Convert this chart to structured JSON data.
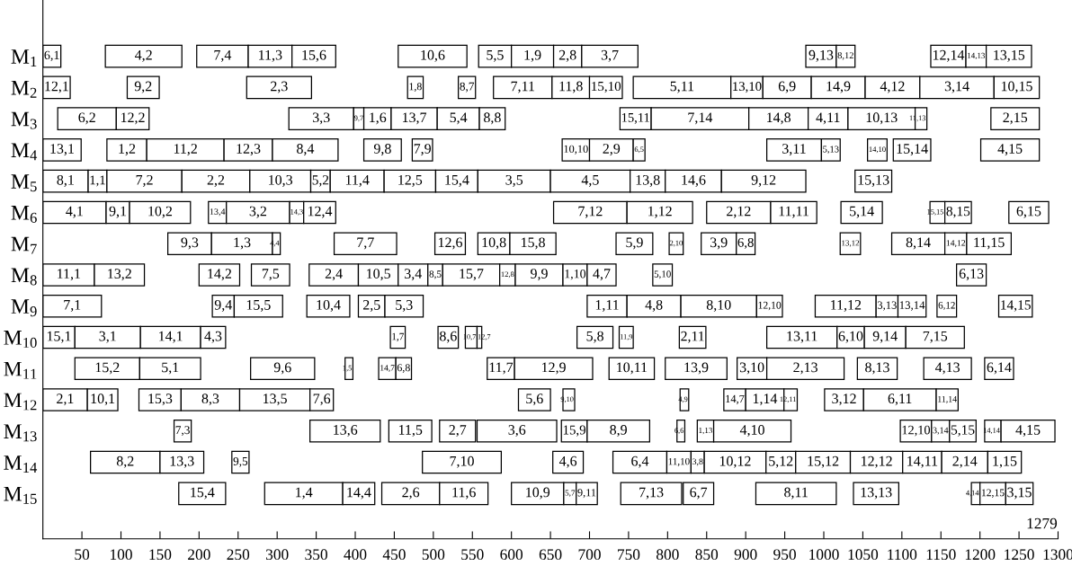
{
  "chart_data": {
    "type": "bar",
    "orientation": "horizontal",
    "categories": [
      "M$_{1}$",
      "M$_{2}$",
      "M$_{3}$",
      "M$_{4}$",
      "M$_{5}$",
      "M$_{6}$",
      "M$_{7}$",
      "M$_{8}$",
      "M$_{9}$",
      "M$_{10}$",
      "M$_{11}$",
      "M$_{12}$",
      "M$_{13}$",
      "M$_{14}$",
      "M$_{15}$"
    ],
    "xlim": [
      0,
      1300
    ],
    "xticks": [
      50,
      100,
      150,
      200,
      250,
      300,
      350,
      400,
      450,
      500,
      550,
      600,
      650,
      700,
      750,
      800,
      850,
      900,
      950,
      1000,
      1050,
      1100,
      1150,
      1200,
      1250,
      1300
    ],
    "annotations": [
      "1279",
      {
        "text": "6,1",
        "x": 23,
        "y": "M$_{1}$"
      },
      {
        "text": "4,2",
        "x": 178,
        "y": "M$_{1}$"
      },
      {
        "text": "7,4",
        "x": 263,
        "y": "M$_{1}$"
      },
      {
        "text": "11,3",
        "x": 319,
        "y": "M$_{1}$"
      },
      {
        "text": "15,6",
        "x": 375,
        "y": "M$_{1}$"
      },
      {
        "text": "10,6",
        "x": 543,
        "y": "M$_{1}$"
      },
      {
        "text": "5,5",
        "x": 600,
        "y": "M$_{1}$"
      },
      {
        "text": "1,9",
        "x": 654,
        "y": "M$_{1}$"
      },
      {
        "text": "2,8",
        "x": 690,
        "y": "M$_{1}$"
      },
      {
        "text": "3,7",
        "x": 762,
        "y": "M$_{1}$"
      },
      {
        "text": "9,13",
        "x": 1016,
        "y": "M$_{1}$"
      },
      {
        "text": "8,12",
        "x": 1040,
        "y": "M$_{1}$"
      },
      {
        "text": "12,14",
        "x": 1182,
        "y": "M$_{1}$"
      },
      {
        "text": "14,13",
        "x": 1208,
        "y": "M$_{1}$"
      },
      {
        "text": "13,15",
        "x": 1266,
        "y": "M$_{1}$"
      },
      {
        "text": "12,1",
        "x": 35,
        "y": "M$_{2}$"
      },
      {
        "text": "9,2",
        "x": 149,
        "y": "M$_{2}$"
      },
      {
        "text": "2,3",
        "x": 344,
        "y": "M$_{2}$"
      },
      {
        "text": "1,8",
        "x": 487,
        "y": "M$_{2}$"
      },
      {
        "text": "8,7",
        "x": 554,
        "y": "M$_{2}$"
      },
      {
        "text": "7,11",
        "x": 652,
        "y": "M$_{2}$"
      },
      {
        "text": "11,8",
        "x": 700,
        "y": "M$_{2}$"
      },
      {
        "text": "15,10",
        "x": 742,
        "y": "M$_{2}$"
      },
      {
        "text": "5,11",
        "x": 881,
        "y": "M$_{2}$"
      },
      {
        "text": "13,10",
        "x": 922,
        "y": "M$_{2}$"
      },
      {
        "text": "6,9",
        "x": 984,
        "y": "M$_{2}$"
      },
      {
        "text": "14,9",
        "x": 1053,
        "y": "M$_{2}$"
      },
      {
        "text": "4,12",
        "x": 1123,
        "y": "M$_{2}$"
      },
      {
        "text": "3,14",
        "x": 1218,
        "y": "M$_{2}$"
      },
      {
        "text": "10,15",
        "x": 1276,
        "y": "M$_{2}$"
      },
      {
        "text": "6,2",
        "x": 94,
        "y": "M$_{3}$"
      },
      {
        "text": "12,2",
        "x": 136,
        "y": "M$_{3}$"
      },
      {
        "text": "3,3",
        "x": 398,
        "y": "M$_{3}$"
      },
      {
        "text": "9,7",
        "x": 411,
        "y": "M$_{3}$"
      },
      {
        "text": "1,6",
        "x": 446,
        "y": "M$_{3}$"
      },
      {
        "text": "13,7",
        "x": 505,
        "y": "M$_{3}$"
      },
      {
        "text": "5,4",
        "x": 559,
        "y": "M$_{3}$"
      },
      {
        "text": "8,8",
        "x": 592,
        "y": "M$_{3}$"
      },
      {
        "text": "15,11",
        "x": 779,
        "y": "M$_{3}$"
      },
      {
        "text": "7,14",
        "x": 904,
        "y": "M$_{3}$"
      },
      {
        "text": "14,8",
        "x": 980,
        "y": "M$_{3}$"
      },
      {
        "text": "4,11",
        "x": 1031,
        "y": "M$_{3}$"
      },
      {
        "text": "10,13",
        "x": 1117,
        "y": "M$_{3}$"
      },
      {
        "text": "11,13",
        "x": 1132,
        "y": "M$_{3}$"
      },
      {
        "text": "2,15",
        "x": 1276,
        "y": "M$_{3}$"
      },
      {
        "text": "13,1",
        "x": 49,
        "y": "M$_{4}$"
      },
      {
        "text": "1,2",
        "x": 133,
        "y": "M$_{4}$"
      },
      {
        "text": "11,2",
        "x": 232,
        "y": "M$_{4}$"
      },
      {
        "text": "12,3",
        "x": 294,
        "y": "M$_{4}$"
      },
      {
        "text": "8,4",
        "x": 378,
        "y": "M$_{4}$"
      },
      {
        "text": "9,8",
        "x": 459,
        "y": "M$_{4}$"
      },
      {
        "text": "7,9",
        "x": 499,
        "y": "M$_{4}$"
      },
      {
        "text": "10,10",
        "x": 700,
        "y": "M$_{4}$"
      },
      {
        "text": "2,9",
        "x": 756,
        "y": "M$_{4}$"
      },
      {
        "text": "6,5",
        "x": 771,
        "y": "M$_{4}$"
      },
      {
        "text": "3,11",
        "x": 997,
        "y": "M$_{4}$"
      },
      {
        "text": "5,13",
        "x": 1021,
        "y": "M$_{4}$"
      },
      {
        "text": "14,10",
        "x": 1081,
        "y": "M$_{4}$"
      },
      {
        "text": "15,14",
        "x": 1137,
        "y": "M$_{4}$"
      },
      {
        "text": "4,15",
        "x": 1276,
        "y": "M$_{4}$"
      },
      {
        "text": "8,1",
        "x": 58,
        "y": "M$_{5}$"
      },
      {
        "text": "1,1",
        "x": 82,
        "y": "M$_{5}$"
      },
      {
        "text": "7,2",
        "x": 178,
        "y": "M$_{5}$"
      },
      {
        "text": "2,2",
        "x": 265,
        "y": "M$_{5}$"
      },
      {
        "text": "10,3",
        "x": 343,
        "y": "M$_{5}$"
      },
      {
        "text": "5,2",
        "x": 368,
        "y": "M$_{5}$"
      },
      {
        "text": "11,4",
        "x": 437,
        "y": "M$_{5}$"
      },
      {
        "text": "12,5",
        "x": 503,
        "y": "M$_{5}$"
      },
      {
        "text": "15,4",
        "x": 557,
        "y": "M$_{5}$"
      },
      {
        "text": "3,5",
        "x": 650,
        "y": "M$_{5}$"
      },
      {
        "text": "4,5",
        "x": 752,
        "y": "M$_{5}$"
      },
      {
        "text": "13,8",
        "x": 797,
        "y": "M$_{5}$"
      },
      {
        "text": "14,6",
        "x": 869,
        "y": "M$_{5}$"
      },
      {
        "text": "9,12",
        "x": 977,
        "y": "M$_{5}$"
      },
      {
        "text": "15,13",
        "x": 1087,
        "y": "M$_{5}$"
      },
      {
        "text": "4,1",
        "x": 81,
        "y": "M$_{6}$"
      },
      {
        "text": "9,1",
        "x": 111,
        "y": "M$_{6}$"
      },
      {
        "text": "10,2",
        "x": 189,
        "y": "M$_{6}$"
      },
      {
        "text": "13,4",
        "x": 235,
        "y": "M$_{6}$"
      },
      {
        "text": "3,2",
        "x": 316,
        "y": "M$_{6}$"
      },
      {
        "text": "14,3",
        "x": 334,
        "y": "M$_{6}$"
      },
      {
        "text": "12,4",
        "x": 375,
        "y": "M$_{6}$"
      },
      {
        "text": "7,12",
        "x": 748,
        "y": "M$_{6}$"
      },
      {
        "text": "1,12",
        "x": 832,
        "y": "M$_{6}$"
      },
      {
        "text": "2,12",
        "x": 932,
        "y": "M$_{6}$"
      },
      {
        "text": "11,11",
        "x": 991,
        "y": "M$_{6}$"
      },
      {
        "text": "5,14",
        "x": 1075,
        "y": "M$_{6}$"
      },
      {
        "text": "15,15",
        "x": 1155,
        "y": "M$_{6}$"
      },
      {
        "text": "8,15",
        "x": 1189,
        "y": "M$_{6}$"
      },
      {
        "text": "6,15",
        "x": 1288,
        "y": "M$_{6}$"
      },
      {
        "text": "9,3",
        "x": 216,
        "y": "M$_{7}$"
      },
      {
        "text": "1,3",
        "x": 294,
        "y": "M$_{7}$"
      },
      {
        "text": "4,4",
        "x": 304,
        "y": "M$_{7}$"
      },
      {
        "text": "7,7",
        "x": 453,
        "y": "M$_{7}$"
      },
      {
        "text": "12,6",
        "x": 541,
        "y": "M$_{7}$"
      },
      {
        "text": "10,8",
        "x": 598,
        "y": "M$_{7}$"
      },
      {
        "text": "15,8",
        "x": 657,
        "y": "M$_{7}$"
      },
      {
        "text": "5,9",
        "x": 781,
        "y": "M$_{7}$"
      },
      {
        "text": "2,10",
        "x": 820,
        "y": "M$_{7}$"
      },
      {
        "text": "3,9",
        "x": 888,
        "y": "M$_{7}$"
      },
      {
        "text": "6,8",
        "x": 912,
        "y": "M$_{7}$"
      },
      {
        "text": "13,12",
        "x": 1047,
        "y": "M$_{7}$"
      },
      {
        "text": "8,14",
        "x": 1155,
        "y": "M$_{7}$"
      },
      {
        "text": "14,12",
        "x": 1183,
        "y": "M$_{7}$"
      },
      {
        "text": "11,15",
        "x": 1240,
        "y": "M$_{7}$"
      },
      {
        "text": "11,1",
        "x": 66,
        "y": "M$_{8}$"
      },
      {
        "text": "13,2",
        "x": 130,
        "y": "M$_{8}$"
      },
      {
        "text": "14,2",
        "x": 252,
        "y": "M$_{8}$"
      },
      {
        "text": "7,5",
        "x": 316,
        "y": "M$_{8}$"
      },
      {
        "text": "2,4",
        "x": 404,
        "y": "M$_{8}$"
      },
      {
        "text": "10,5",
        "x": 455,
        "y": "M$_{8}$"
      },
      {
        "text": "3,4",
        "x": 493,
        "y": "M$_{8}$"
      },
      {
        "text": "8,5",
        "x": 512,
        "y": "M$_{8}$"
      },
      {
        "text": "15,7",
        "x": 585,
        "y": "M$_{8}$"
      },
      {
        "text": "12,8",
        "x": 605,
        "y": "M$_{8}$"
      },
      {
        "text": "9,9",
        "x": 666,
        "y": "M$_{8}$"
      },
      {
        "text": "1,10",
        "x": 697,
        "y": "M$_{8}$"
      },
      {
        "text": "4,7",
        "x": 734,
        "y": "M$_{8}$"
      },
      {
        "text": "5,10",
        "x": 806,
        "y": "M$_{8}$"
      },
      {
        "text": "6,13",
        "x": 1208,
        "y": "M$_{8}$"
      },
      {
        "text": "7,1",
        "x": 75,
        "y": "M$_{9}$"
      },
      {
        "text": "9,4",
        "x": 245,
        "y": "M$_{9}$"
      },
      {
        "text": "15,5",
        "x": 307,
        "y": "M$_{9}$"
      },
      {
        "text": "10,4",
        "x": 393,
        "y": "M$_{9}$"
      },
      {
        "text": "2,5",
        "x": 438,
        "y": "M$_{9}$"
      },
      {
        "text": "5,3",
        "x": 487,
        "y": "M$_{9}$"
      },
      {
        "text": "1,11",
        "x": 748,
        "y": "M$_{9}$"
      },
      {
        "text": "4,8",
        "x": 817,
        "y": "M$_{9}$"
      },
      {
        "text": "8,10",
        "x": 914,
        "y": "M$_{9}$"
      },
      {
        "text": "12,10",
        "x": 947,
        "y": "M$_{9}$"
      },
      {
        "text": "11,12",
        "x": 1067,
        "y": "M$_{9}$"
      },
      {
        "text": "3,13",
        "x": 1095,
        "y": "M$_{9}$"
      },
      {
        "text": "13,14",
        "x": 1131,
        "y": "M$_{9}$"
      },
      {
        "text": "6,12",
        "x": 1170,
        "y": "M$_{9}$"
      },
      {
        "text": "14,15",
        "x": 1267,
        "y": "M$_{9}$"
      },
      {
        "text": "15,1",
        "x": 41,
        "y": "M$_{10}$"
      },
      {
        "text": "3,1",
        "x": 125,
        "y": "M$_{10}$"
      },
      {
        "text": "14,1",
        "x": 202,
        "y": "M$_{10}$"
      },
      {
        "text": "4,3",
        "x": 234,
        "y": "M$_{10}$"
      },
      {
        "text": "1,7",
        "x": 464,
        "y": "M$_{10}$"
      },
      {
        "text": "8,6",
        "x": 532,
        "y": "M$_{10}$"
      },
      {
        "text": "10,7",
        "x": 556,
        "y": "M$_{10}$"
      },
      {
        "text": "12,7",
        "x": 562,
        "y": "M$_{10}$"
      },
      {
        "text": "5,8",
        "x": 730,
        "y": "M$_{10}$"
      },
      {
        "text": "11,9",
        "x": 756,
        "y": "M$_{10}$"
      },
      {
        "text": "2,11",
        "x": 849,
        "y": "M$_{10}$"
      },
      {
        "text": "13,11",
        "x": 1017,
        "y": "M$_{10}$"
      },
      {
        "text": "6,10",
        "x": 1052,
        "y": "M$_{10}$"
      },
      {
        "text": "9,14",
        "x": 1105,
        "y": "M$_{10}$"
      },
      {
        "text": "7,15",
        "x": 1180,
        "y": "M$_{10}$"
      },
      {
        "text": "15,2",
        "x": 124,
        "y": "M$_{11}$"
      },
      {
        "text": "5,1",
        "x": 202,
        "y": "M$_{11}$"
      },
      {
        "text": "9,6",
        "x": 348,
        "y": "M$_{11}$"
      },
      {
        "text": "1,5",
        "x": 397,
        "y": "M$_{11}$"
      },
      {
        "text": "14,7",
        "x": 452,
        "y": "M$_{11}$"
      },
      {
        "text": "6,8",
        "x": 472,
        "y": "M$_{11}$"
      },
      {
        "text": "11,7",
        "x": 604,
        "y": "M$_{11}$"
      },
      {
        "text": "12,9",
        "x": 704,
        "y": "M$_{11}$"
      },
      {
        "text": "10,11",
        "x": 783,
        "y": "M$_{11}$"
      },
      {
        "text": "13,9",
        "x": 876,
        "y": "M$_{11}$"
      },
      {
        "text": "3,10",
        "x": 927,
        "y": "M$_{11}$"
      },
      {
        "text": "2,13",
        "x": 1026,
        "y": "M$_{11}$"
      },
      {
        "text": "8,13",
        "x": 1094,
        "y": "M$_{11}$"
      },
      {
        "text": "4,13",
        "x": 1189,
        "y": "M$_{11}$"
      },
      {
        "text": "6,14",
        "x": 1243,
        "y": "M$_{11}$"
      },
      {
        "text": "2,1",
        "x": 57,
        "y": "M$_{12}$"
      },
      {
        "text": "10,1",
        "x": 96,
        "y": "M$_{12}$"
      },
      {
        "text": "15,3",
        "x": 177,
        "y": "M$_{12}$"
      },
      {
        "text": "8,3",
        "x": 252,
        "y": "M$_{12}$"
      },
      {
        "text": "13,5",
        "x": 342,
        "y": "M$_{12}$"
      },
      {
        "text": "7,6",
        "x": 372,
        "y": "M$_{12}$"
      },
      {
        "text": "5,6",
        "x": 650,
        "y": "M$_{12}$"
      },
      {
        "text": "9,10",
        "x": 681,
        "y": "M$_{12}$"
      },
      {
        "text": "4,9",
        "x": 827,
        "y": "M$_{12}$"
      },
      {
        "text": "14,7",
        "x": 900,
        "y": "M$_{12}$"
      },
      {
        "text": "1,14",
        "x": 949,
        "y": "M$_{12}$"
      },
      {
        "text": "12,11",
        "x": 966,
        "y": "M$_{12}$"
      },
      {
        "text": "3,12",
        "x": 1051,
        "y": "M$_{12}$"
      },
      {
        "text": "6,11",
        "x": 1144,
        "y": "M$_{12}$"
      },
      {
        "text": "11,14",
        "x": 1172,
        "y": "M$_{12}$"
      },
      {
        "text": "7,3",
        "x": 190,
        "y": "M$_{13}$"
      },
      {
        "text": "13,6",
        "x": 432,
        "y": "M$_{13}$"
      },
      {
        "text": "11,5",
        "x": 498,
        "y": "M$_{13}$"
      },
      {
        "text": "2,7",
        "x": 554,
        "y": "M$_{13}$"
      },
      {
        "text": "3,6",
        "x": 658,
        "y": "M$_{13}$"
      },
      {
        "text": "15,9",
        "x": 697,
        "y": "M$_{13}$"
      },
      {
        "text": "8,9",
        "x": 777,
        "y": "M$_{13}$"
      },
      {
        "text": "6,6",
        "x": 822,
        "y": "M$_{13}$"
      },
      {
        "text": "1,13",
        "x": 859,
        "y": "M$_{13}$"
      },
      {
        "text": "4,10",
        "x": 958,
        "y": "M$_{13}$"
      },
      {
        "text": "12,10",
        "x": 1138,
        "y": "M$_{13}$"
      },
      {
        "text": "3,14",
        "x": 1161,
        "y": "M$_{13}$"
      },
      {
        "text": "5,15",
        "x": 1195,
        "y": "M$_{13}$"
      },
      {
        "text": "14,14",
        "x": 1227,
        "y": "M$_{13}$"
      },
      {
        "text": "4,15",
        "x": 1296,
        "y": "M$_{13}$"
      },
      {
        "text": "8,2",
        "x": 150,
        "y": "M$_{14}$"
      },
      {
        "text": "13,3",
        "x": 206,
        "y": "M$_{14}$"
      },
      {
        "text": "9,5",
        "x": 264,
        "y": "M$_{14}$"
      },
      {
        "text": "7,10",
        "x": 587,
        "y": "M$_{14}$"
      },
      {
        "text": "4,6",
        "x": 692,
        "y": "M$_{14}$"
      },
      {
        "text": "6,4",
        "x": 799,
        "y": "M$_{14}$"
      },
      {
        "text": "11,10",
        "x": 830,
        "y": "M$_{14}$"
      },
      {
        "text": "3,8",
        "x": 847,
        "y": "M$_{14}$"
      },
      {
        "text": "10,12",
        "x": 926,
        "y": "M$_{14}$"
      },
      {
        "text": "5,12",
        "x": 964,
        "y": "M$_{14}$"
      },
      {
        "text": "15,12",
        "x": 1034,
        "y": "M$_{14}$"
      },
      {
        "text": "12,12",
        "x": 1101,
        "y": "M$_{14}$"
      },
      {
        "text": "14,11",
        "x": 1151,
        "y": "M$_{14}$"
      },
      {
        "text": "2,14",
        "x": 1210,
        "y": "M$_{14}$"
      },
      {
        "text": "1,15",
        "x": 1253,
        "y": "M$_{14}$"
      },
      {
        "text": "15,4",
        "x": 234,
        "y": "M$_{15}$"
      },
      {
        "text": "1,4",
        "x": 384,
        "y": "M$_{15}$"
      },
      {
        "text": "14,4",
        "x": 425,
        "y": "M$_{15}$"
      },
      {
        "text": "2,6",
        "x": 508,
        "y": "M$_{15}$"
      },
      {
        "text": "11,6",
        "x": 570,
        "y": "M$_{15}$"
      },
      {
        "text": "10,9",
        "x": 667,
        "y": "M$_{15}$"
      },
      {
        "text": "5,7",
        "x": 683,
        "y": "M$_{15}$"
      },
      {
        "text": "9,11",
        "x": 710,
        "y": "M$_{15}$"
      },
      {
        "text": "7,13",
        "x": 818,
        "y": "M$_{15}$"
      },
      {
        "text": "6,7",
        "x": 859,
        "y": "M$_{15}$"
      },
      {
        "text": "8,11",
        "x": 1016,
        "y": "M$_{15}$"
      },
      {
        "text": "13,13",
        "x": 1096,
        "y": "M$_{15}$"
      },
      {
        "text": "4,14",
        "x": 1200,
        "y": "M$_{15}$"
      },
      {
        "text": "12,15",
        "x": 1233,
        "y": "M$_{15}$"
      },
      {
        "text": "3,15",
        "x": 1268,
        "y": "M$_{15}$"
      }
    ],
    "series": [
      {
        "color": "#ffffff",
        "base": [
          0,
          0,
          19,
          0,
          0,
          0,
          160,
          0,
          0,
          0,
          41,
          0,
          168,
          61,
          174
        ],
        "values": [
          23,
          35,
          75,
          49,
          58,
          81,
          56,
          66,
          75,
          41,
          83,
          57,
          22,
          89,
          60
        ]
      },
      {
        "color": "#ffffff",
        "base": [
          80,
          108,
          94,
          82,
          58,
          81,
          216,
          66,
          217,
          41,
          124,
          57,
          342,
          150,
          284
        ],
        "values": [
          98,
          41,
          42,
          51,
          24,
          30,
          78,
          64,
          28,
          84,
          78,
          39,
          90,
          56,
          100
        ]
      },
      {
        "color": "#ffffff",
        "base": [
          197,
          261,
          315,
          133,
          82,
          111,
          294,
          200,
          245,
          125,
          266,
          123,
          443,
          242,
          384
        ],
        "values": [
          66,
          83,
          83,
          99,
          96,
          78,
          10,
          52,
          62,
          77,
          82,
          54,
          55,
          22,
          41
        ]
      },
      {
        "color": "#ffffff",
        "base": [
          263,
          467,
          398,
          232,
          178,
          212,
          373,
          267,
          338,
          202,
          387,
          177,
          508,
          486,
          434
        ],
        "values": [
          56,
          20,
          13,
          62,
          87,
          23,
          80,
          49,
          55,
          32,
          10,
          75,
          46,
          101,
          74
        ]
      },
      {
        "color": "#ffffff",
        "base": [
          319,
          532,
          411,
          294,
          265,
          235,
          502,
          341,
          404,
          445,
          430,
          252,
          556,
          653,
          508
        ],
        "values": [
          56,
          22,
          35,
          84,
          78,
          81,
          39,
          63,
          34,
          19,
          22,
          90,
          102,
          39,
          62
        ]
      },
      {
        "color": "#ffffff",
        "base": [
          455,
          577,
          446,
          411,
          343,
          316,
          557,
          404,
          438,
          506,
          452,
          342,
          664,
          730,
          600
        ],
        "values": [
          88,
          75,
          59,
          48,
          25,
          18,
          41,
          51,
          49,
          26,
          20,
          30,
          33,
          69,
          67
        ]
      },
      {
        "color": "#ffffff",
        "base": [
          558,
          652,
          505,
          473,
          368,
          334,
          598,
          455,
          697,
          541,
          569,
          609,
          697,
          799,
          667
        ],
        "values": [
          42,
          48,
          54,
          26,
          69,
          41,
          59,
          38,
          51,
          15,
          35,
          41,
          80,
          31,
          16
        ]
      },
      {
        "color": "#ffffff",
        "base": [
          600,
          700,
          559,
          665,
          437,
          654,
          734,
          493,
          748,
          556,
          604,
          666,
          812,
          830,
          683
        ],
        "values": [
          54,
          42,
          33,
          35,
          66,
          94,
          47,
          19,
          69,
          6,
          100,
          15,
          10,
          17,
          27
        ]
      },
      {
        "color": "#ffffff",
        "base": [
          654,
          756,
          739,
          700,
          503,
          748,
          802,
          512,
          817,
          684,
          725,
          816,
          838,
          847,
          740
        ],
        "values": [
          36,
          125,
          40,
          56,
          54,
          84,
          18,
          73,
          97,
          46,
          58,
          11,
          21,
          79,
          78
        ]
      },
      {
        "color": "#ffffff",
        "base": [
          690,
          881,
          779,
          756,
          557,
          850,
          843,
          585,
          914,
          738,
          797,
          872,
          859,
          926,
          820
        ],
        "values": [
          72,
          41,
          125,
          15,
          93,
          82,
          45,
          20,
          33,
          18,
          79,
          28,
          99,
          38,
          39
        ]
      },
      {
        "color": "#ffffff",
        "base": [
          977,
          922,
          904,
          927,
          650,
          932,
          888,
          605,
          989,
          815,
          889,
          900,
          1098,
          964,
          913
        ],
        "values": [
          39,
          62,
          76,
          70,
          102,
          59,
          24,
          61,
          78,
          34,
          38,
          49,
          40,
          70,
          103
        ]
      },
      {
        "color": "#ffffff",
        "base": [
          1016,
          984,
          980,
          997,
          752,
          1022,
          1021,
          666,
          1067,
          927,
          927,
          949,
          1138,
          1034,
          1038
        ],
        "values": [
          24,
          69,
          51,
          24,
          45,
          53,
          26,
          31,
          28,
          90,
          99,
          17,
          23,
          67,
          58
        ]
      },
      {
        "color": "#ffffff",
        "base": [
          1137,
          1053,
          1031,
          1056,
          797,
          1136,
          1087,
          697,
          1095,
          1017,
          1043,
          1001,
          1161,
          1101,
          1189
        ],
        "values": [
          45,
          70,
          86,
          25,
          72,
          19,
          68,
          37,
          36,
          35,
          51,
          50,
          34,
          50,
          11
        ]
      },
      {
        "color": "#ffffff",
        "base": [
          1182,
          1123,
          1117,
          1089,
          869,
          1155,
          1155,
          781,
          1145,
          1052,
          1128,
          1051,
          1206,
          1151,
          1200
        ],
        "values": [
          26,
          95,
          15,
          48,
          108,
          34,
          28,
          25,
          25,
          53,
          61,
          93,
          21,
          59,
          33
        ]
      },
      {
        "color": "#ffffff",
        "base": [
          1208,
          1218,
          1214,
          1201,
          1040,
          1237,
          1183,
          1170,
          1224,
          1105,
          1206,
          1144,
          1227,
          1210,
          1233
        ],
        "values": [
          58,
          58,
          62,
          75,
          47,
          51,
          57,
          38,
          43,
          75,
          37,
          28,
          69,
          43,
          35
        ]
      }
    ]
  }
}
